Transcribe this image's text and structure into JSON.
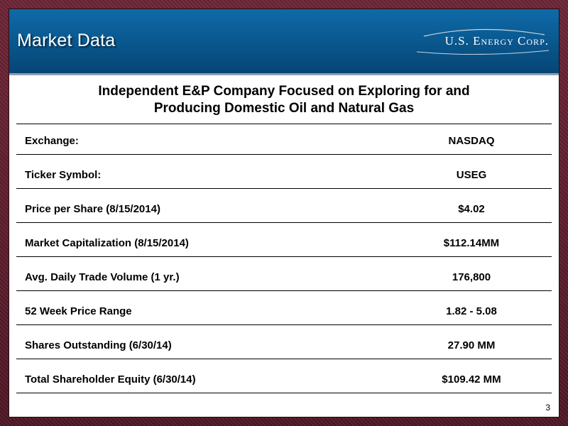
{
  "header": {
    "title": "Market Data",
    "logo_text": "U.S. Energy Corp."
  },
  "subtitle": {
    "line1": "Independent E&P Company Focused on Exploring for and",
    "line2": "Producing Domestic Oil and Natural Gas"
  },
  "rows": [
    {
      "label": "Exchange:",
      "value": "NASDAQ"
    },
    {
      "label": "Ticker Symbol:",
      "value": "USEG"
    },
    {
      "label": "Price per Share (8/15/2014)",
      "value": "$4.02"
    },
    {
      "label": "Market Capitalization (8/15/2014)",
      "value": "$112.14MM"
    },
    {
      "label": "Avg. Daily Trade Volume (1 yr.)",
      "value": "176,800"
    },
    {
      "label": "52 Week Price Range",
      "value": "1.82 - 5.08"
    },
    {
      "label": "Shares Outstanding (6/30/14)",
      "value": "27.90 MM"
    },
    {
      "label": "Total Shareholder Equity (6/30/14)",
      "value": "$109.42 MM"
    }
  ],
  "page_number": "3",
  "colors": {
    "header_blue": "#0a5a92",
    "frame_maroon": "#5a1c2c"
  }
}
